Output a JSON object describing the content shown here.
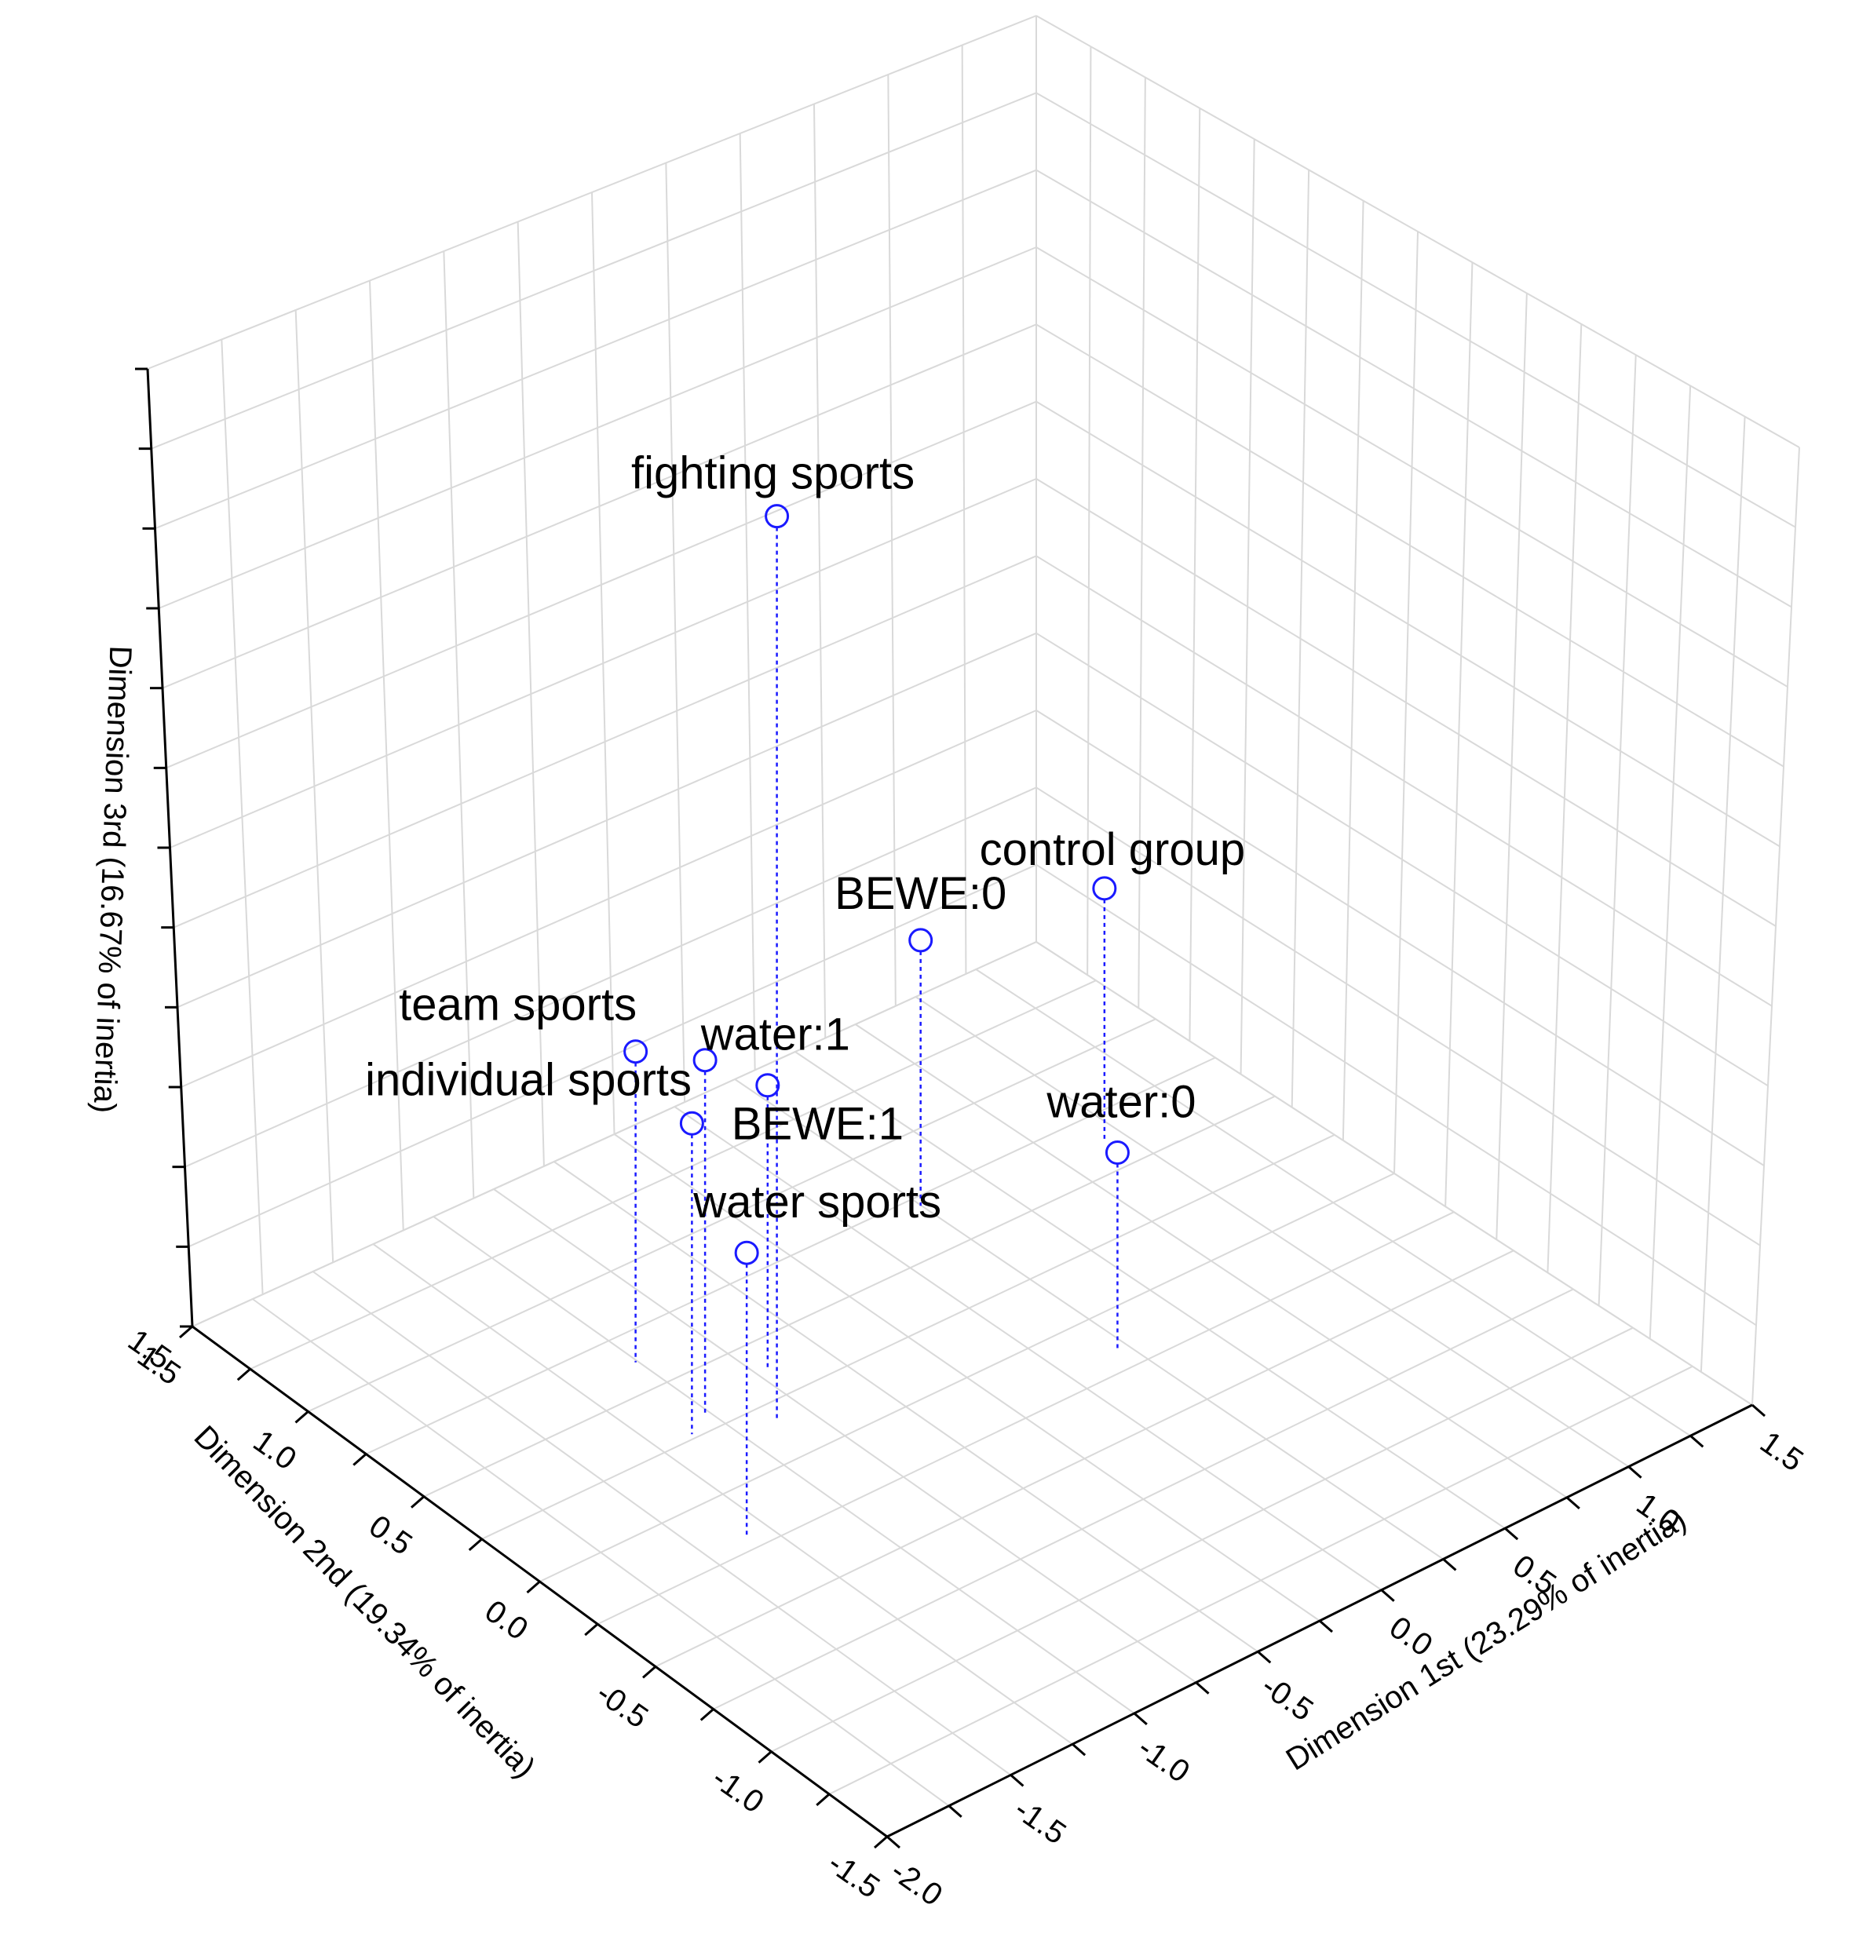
{
  "chart_data": {
    "type": "scatter3d",
    "axes": {
      "x": {
        "label": "Dimension 1st (23.29% of inertia)",
        "ticks": [
          "-2.0",
          "-1.5",
          "-1.0",
          "-0.5",
          "0.0",
          "0.5",
          "1.0",
          "1.5"
        ],
        "range": [
          -2.0,
          1.5
        ]
      },
      "y": {
        "label": "Dimension 2nd (19.34% of inertia)",
        "ticks": [
          "-1.5",
          "-1.0",
          "-0.5",
          "0.0",
          "0.5",
          "1.0",
          "1.5"
        ],
        "range": [
          -1.5,
          1.5
        ]
      },
      "z": {
        "label": "Dimension 3rd (16.67% of inertia)",
        "ticks": [
          "1.5"
        ]
      }
    },
    "grid": true,
    "points": [
      {
        "label": "fighting sports",
        "x": -0.9,
        "y": 0.15,
        "z": 2.2
      },
      {
        "label": "water:1",
        "x": -0.75,
        "y": 0.35,
        "z": 0.0
      },
      {
        "label": "BEWE:0",
        "x": 0.15,
        "y": 0.65,
        "z": -0.06
      },
      {
        "label": "team sports",
        "x": -1.05,
        "y": 0.6,
        "z": 0.1
      },
      {
        "label": "individual sports",
        "x": -1.05,
        "y": 0.3,
        "z": 0.25
      },
      {
        "label": "BEWE:1",
        "x": -1.15,
        "y": 0.25,
        "z": 0.1
      },
      {
        "label": "control group",
        "x": 0.8,
        "y": 0.55,
        "z": -0.1
      },
      {
        "label": "water:0",
        "x": 0.15,
        "y": -0.2,
        "z": -0.3
      },
      {
        "label": "water sports",
        "x": -1.35,
        "y": -0.2,
        "z": 0.0
      }
    ]
  }
}
